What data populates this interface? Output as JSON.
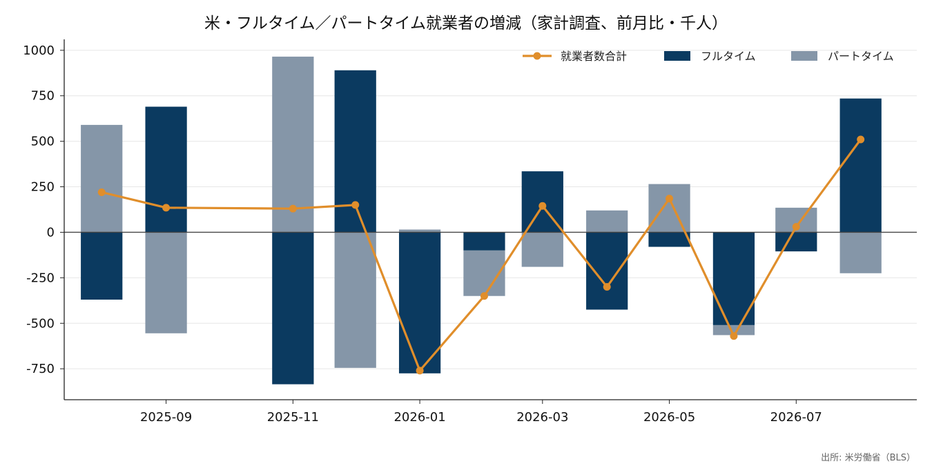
{
  "chart_data": {
    "type": "bar",
    "title": "米・フルタイム／パートタイム就業者の増減（家計調査、前月比・千人）",
    "source": "出所: 米労働省（BLS）",
    "stacked": true,
    "xlabel": "",
    "ylabel": "",
    "ylim": [
      -920,
      1060
    ],
    "yticks": [
      -750,
      -500,
      -250,
      0,
      250,
      500,
      750,
      1000
    ],
    "ytick_labels": [
      "-750",
      "-500",
      "-250",
      "0",
      "250",
      "500",
      "750",
      "1000"
    ],
    "xtick_labels": [
      "2025-09",
      "2025-11",
      "2026-01",
      "2026-03",
      "2026-05",
      "2026-07"
    ],
    "xtick_dates": [
      "2025-09-01",
      "2025-11-01",
      "2026-01-01",
      "2026-03-01",
      "2026-05-01",
      "2026-07-01"
    ],
    "xlim": [
      "2025-07-14",
      "2026-08-28"
    ],
    "x": [
      "2025-08-01",
      "2025-09-01",
      "2025-11-01",
      "2025-12-01",
      "2026-01-01",
      "2026-02-01",
      "2026-03-01",
      "2026-04-01",
      "2026-05-01",
      "2026-06-01",
      "2026-07-01",
      "2026-08-01"
    ],
    "grid": "y",
    "legend_position": "top-right",
    "series": [
      {
        "name": "就業者数合計",
        "kind": "line",
        "color": "#e08e2b",
        "values": [
          220,
          135,
          130,
          150,
          -760,
          -350,
          145,
          -300,
          185,
          -570,
          30,
          510
        ]
      },
      {
        "name": "フルタイム",
        "kind": "bar",
        "color": "#0b3a60",
        "values": [
          -370,
          690,
          -835,
          890,
          -775,
          -100,
          335,
          -425,
          -80,
          -510,
          -105,
          735
        ]
      },
      {
        "name": "パートタイム",
        "kind": "bar",
        "color": "#8596a8",
        "values": [
          590,
          -555,
          965,
          -745,
          15,
          -250,
          -190,
          120,
          265,
          -55,
          135,
          -225
        ]
      }
    ]
  }
}
